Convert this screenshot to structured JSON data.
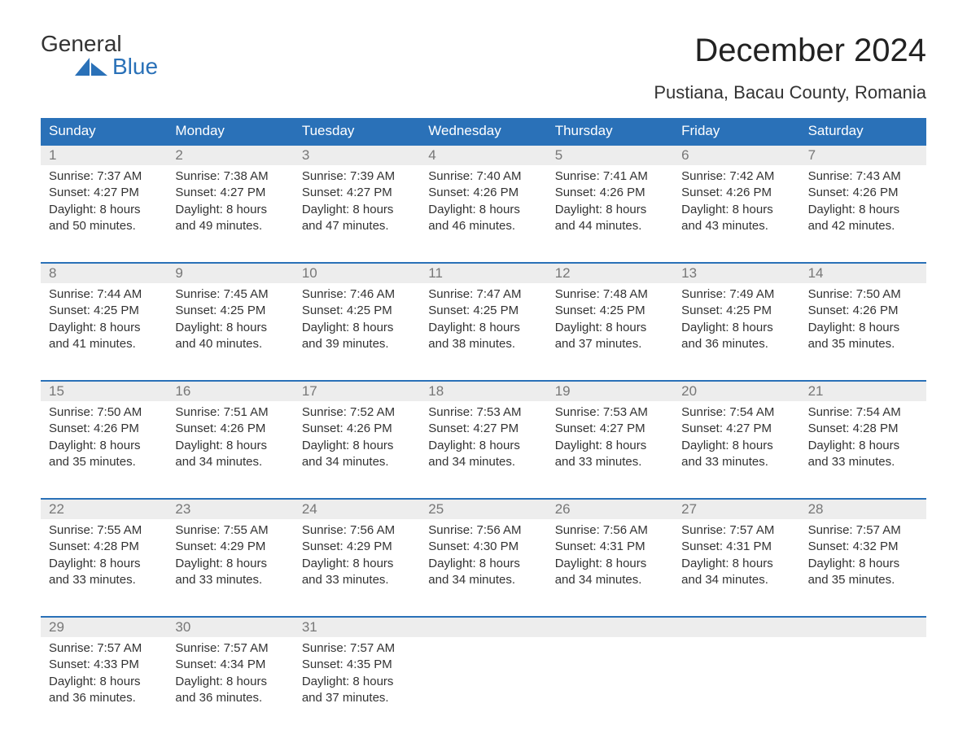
{
  "logo": {
    "word1": "General",
    "word2": "Blue"
  },
  "title": "December 2024",
  "location": "Pustiana, Bacau County, Romania",
  "colors": {
    "header_bg": "#2a71b8",
    "header_text": "#ffffff",
    "daynum_bg": "#ededed",
    "daynum_text": "#777777",
    "body_text": "#333333",
    "background": "#ffffff",
    "divider": "#2a71b8"
  },
  "day_names": [
    "Sunday",
    "Monday",
    "Tuesday",
    "Wednesday",
    "Thursday",
    "Friday",
    "Saturday"
  ],
  "weeks": [
    [
      {
        "num": "1",
        "sunrise": "Sunrise: 7:37 AM",
        "sunset": "Sunset: 4:27 PM",
        "d1": "Daylight: 8 hours",
        "d2": "and 50 minutes."
      },
      {
        "num": "2",
        "sunrise": "Sunrise: 7:38 AM",
        "sunset": "Sunset: 4:27 PM",
        "d1": "Daylight: 8 hours",
        "d2": "and 49 minutes."
      },
      {
        "num": "3",
        "sunrise": "Sunrise: 7:39 AM",
        "sunset": "Sunset: 4:27 PM",
        "d1": "Daylight: 8 hours",
        "d2": "and 47 minutes."
      },
      {
        "num": "4",
        "sunrise": "Sunrise: 7:40 AM",
        "sunset": "Sunset: 4:26 PM",
        "d1": "Daylight: 8 hours",
        "d2": "and 46 minutes."
      },
      {
        "num": "5",
        "sunrise": "Sunrise: 7:41 AM",
        "sunset": "Sunset: 4:26 PM",
        "d1": "Daylight: 8 hours",
        "d2": "and 44 minutes."
      },
      {
        "num": "6",
        "sunrise": "Sunrise: 7:42 AM",
        "sunset": "Sunset: 4:26 PM",
        "d1": "Daylight: 8 hours",
        "d2": "and 43 minutes."
      },
      {
        "num": "7",
        "sunrise": "Sunrise: 7:43 AM",
        "sunset": "Sunset: 4:26 PM",
        "d1": "Daylight: 8 hours",
        "d2": "and 42 minutes."
      }
    ],
    [
      {
        "num": "8",
        "sunrise": "Sunrise: 7:44 AM",
        "sunset": "Sunset: 4:25 PM",
        "d1": "Daylight: 8 hours",
        "d2": "and 41 minutes."
      },
      {
        "num": "9",
        "sunrise": "Sunrise: 7:45 AM",
        "sunset": "Sunset: 4:25 PM",
        "d1": "Daylight: 8 hours",
        "d2": "and 40 minutes."
      },
      {
        "num": "10",
        "sunrise": "Sunrise: 7:46 AM",
        "sunset": "Sunset: 4:25 PM",
        "d1": "Daylight: 8 hours",
        "d2": "and 39 minutes."
      },
      {
        "num": "11",
        "sunrise": "Sunrise: 7:47 AM",
        "sunset": "Sunset: 4:25 PM",
        "d1": "Daylight: 8 hours",
        "d2": "and 38 minutes."
      },
      {
        "num": "12",
        "sunrise": "Sunrise: 7:48 AM",
        "sunset": "Sunset: 4:25 PM",
        "d1": "Daylight: 8 hours",
        "d2": "and 37 minutes."
      },
      {
        "num": "13",
        "sunrise": "Sunrise: 7:49 AM",
        "sunset": "Sunset: 4:25 PM",
        "d1": "Daylight: 8 hours",
        "d2": "and 36 minutes."
      },
      {
        "num": "14",
        "sunrise": "Sunrise: 7:50 AM",
        "sunset": "Sunset: 4:26 PM",
        "d1": "Daylight: 8 hours",
        "d2": "and 35 minutes."
      }
    ],
    [
      {
        "num": "15",
        "sunrise": "Sunrise: 7:50 AM",
        "sunset": "Sunset: 4:26 PM",
        "d1": "Daylight: 8 hours",
        "d2": "and 35 minutes."
      },
      {
        "num": "16",
        "sunrise": "Sunrise: 7:51 AM",
        "sunset": "Sunset: 4:26 PM",
        "d1": "Daylight: 8 hours",
        "d2": "and 34 minutes."
      },
      {
        "num": "17",
        "sunrise": "Sunrise: 7:52 AM",
        "sunset": "Sunset: 4:26 PM",
        "d1": "Daylight: 8 hours",
        "d2": "and 34 minutes."
      },
      {
        "num": "18",
        "sunrise": "Sunrise: 7:53 AM",
        "sunset": "Sunset: 4:27 PM",
        "d1": "Daylight: 8 hours",
        "d2": "and 34 minutes."
      },
      {
        "num": "19",
        "sunrise": "Sunrise: 7:53 AM",
        "sunset": "Sunset: 4:27 PM",
        "d1": "Daylight: 8 hours",
        "d2": "and 33 minutes."
      },
      {
        "num": "20",
        "sunrise": "Sunrise: 7:54 AM",
        "sunset": "Sunset: 4:27 PM",
        "d1": "Daylight: 8 hours",
        "d2": "and 33 minutes."
      },
      {
        "num": "21",
        "sunrise": "Sunrise: 7:54 AM",
        "sunset": "Sunset: 4:28 PM",
        "d1": "Daylight: 8 hours",
        "d2": "and 33 minutes."
      }
    ],
    [
      {
        "num": "22",
        "sunrise": "Sunrise: 7:55 AM",
        "sunset": "Sunset: 4:28 PM",
        "d1": "Daylight: 8 hours",
        "d2": "and 33 minutes."
      },
      {
        "num": "23",
        "sunrise": "Sunrise: 7:55 AM",
        "sunset": "Sunset: 4:29 PM",
        "d1": "Daylight: 8 hours",
        "d2": "and 33 minutes."
      },
      {
        "num": "24",
        "sunrise": "Sunrise: 7:56 AM",
        "sunset": "Sunset: 4:29 PM",
        "d1": "Daylight: 8 hours",
        "d2": "and 33 minutes."
      },
      {
        "num": "25",
        "sunrise": "Sunrise: 7:56 AM",
        "sunset": "Sunset: 4:30 PM",
        "d1": "Daylight: 8 hours",
        "d2": "and 34 minutes."
      },
      {
        "num": "26",
        "sunrise": "Sunrise: 7:56 AM",
        "sunset": "Sunset: 4:31 PM",
        "d1": "Daylight: 8 hours",
        "d2": "and 34 minutes."
      },
      {
        "num": "27",
        "sunrise": "Sunrise: 7:57 AM",
        "sunset": "Sunset: 4:31 PM",
        "d1": "Daylight: 8 hours",
        "d2": "and 34 minutes."
      },
      {
        "num": "28",
        "sunrise": "Sunrise: 7:57 AM",
        "sunset": "Sunset: 4:32 PM",
        "d1": "Daylight: 8 hours",
        "d2": "and 35 minutes."
      }
    ],
    [
      {
        "num": "29",
        "sunrise": "Sunrise: 7:57 AM",
        "sunset": "Sunset: 4:33 PM",
        "d1": "Daylight: 8 hours",
        "d2": "and 36 minutes."
      },
      {
        "num": "30",
        "sunrise": "Sunrise: 7:57 AM",
        "sunset": "Sunset: 4:34 PM",
        "d1": "Daylight: 8 hours",
        "d2": "and 36 minutes."
      },
      {
        "num": "31",
        "sunrise": "Sunrise: 7:57 AM",
        "sunset": "Sunset: 4:35 PM",
        "d1": "Daylight: 8 hours",
        "d2": "and 37 minutes."
      },
      null,
      null,
      null,
      null
    ]
  ]
}
